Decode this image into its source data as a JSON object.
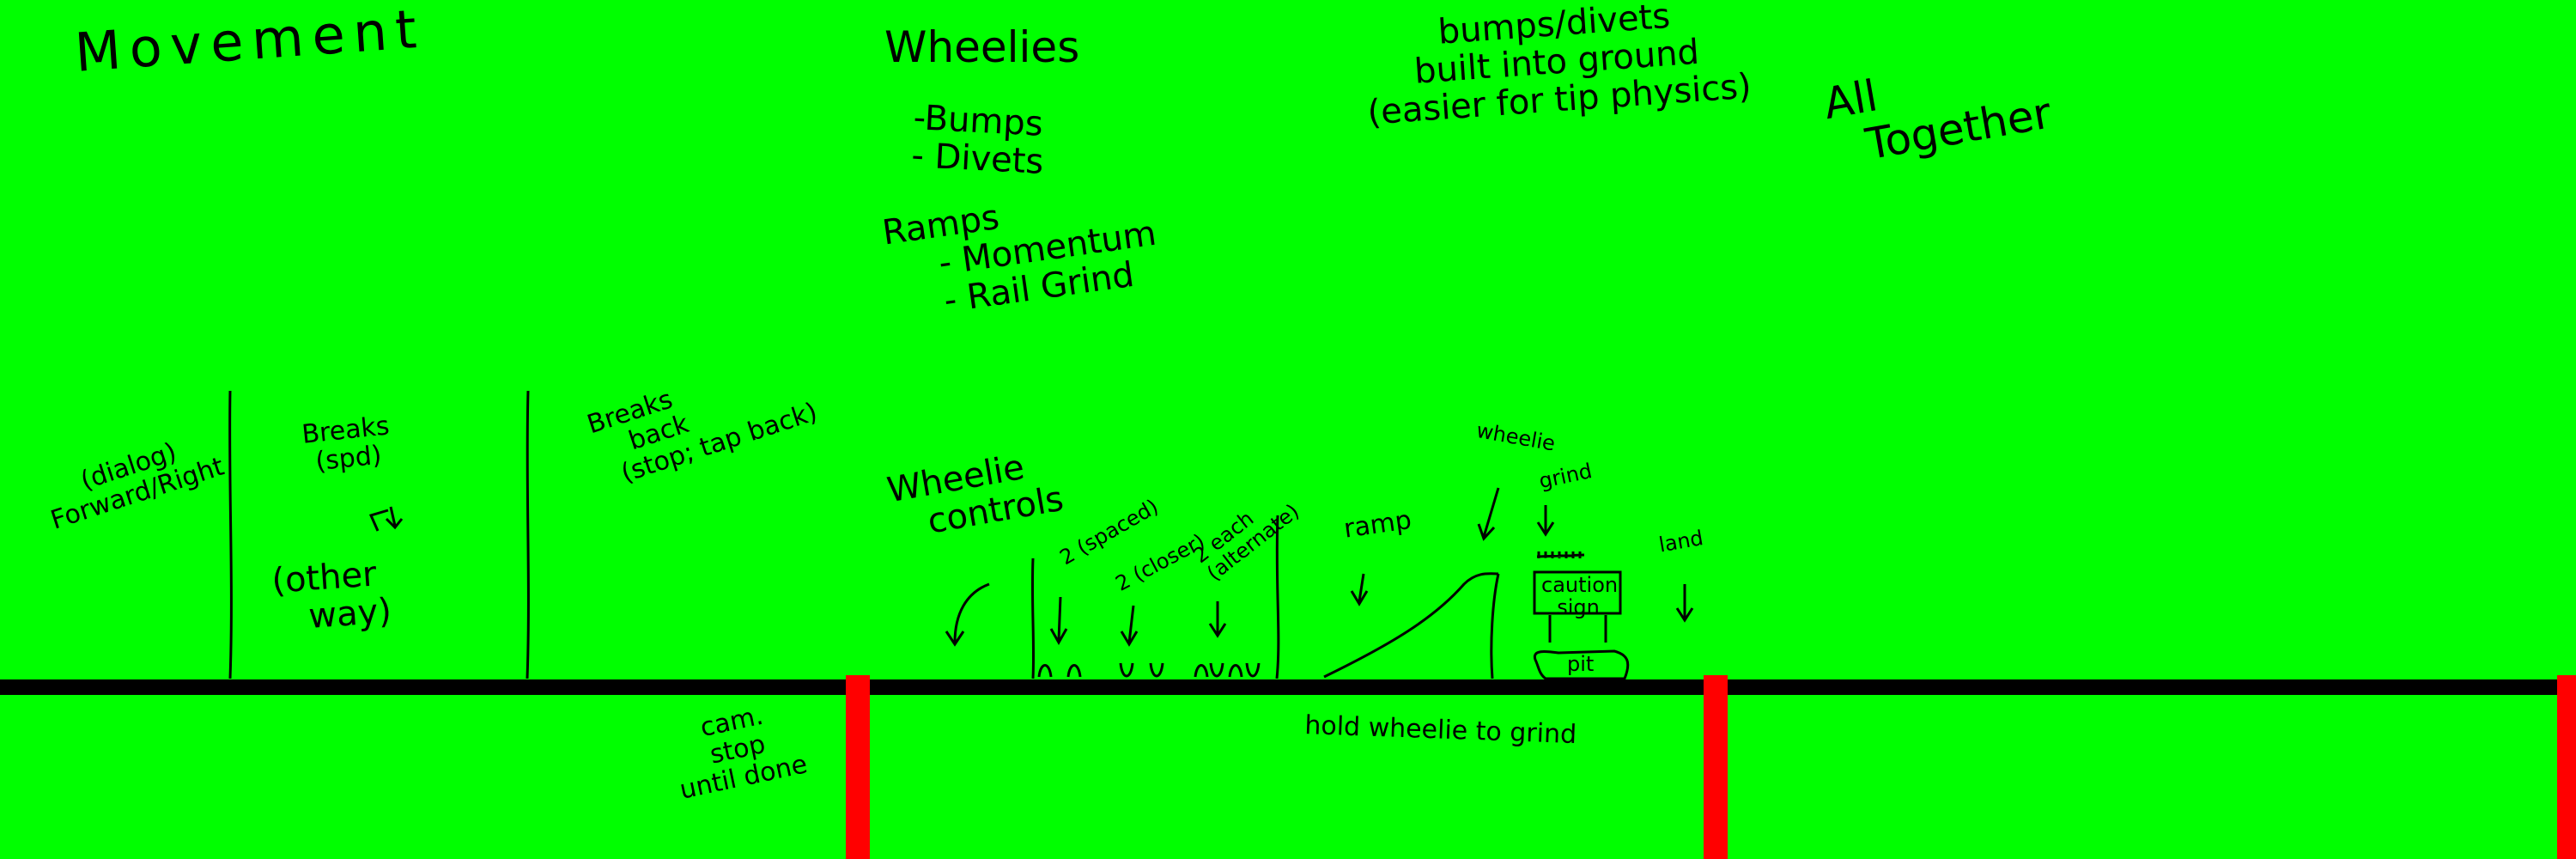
{
  "sections": {
    "movement": "Movement",
    "wheelies": "Wheelies",
    "bumps": [
      "bumps/divets",
      "built into ground",
      "(easier for tip physics)"
    ],
    "all_together": [
      "All",
      "Together"
    ]
  },
  "wheelie_list": [
    "-Bumps",
    "- Divets"
  ],
  "ramps_list": [
    "Ramps",
    "- Momentum",
    "- Rail Grind"
  ],
  "movement_notes": {
    "forward": [
      "(dialog)",
      "Forward/Right"
    ],
    "breaks_spd": [
      "Breaks",
      "(spd)"
    ],
    "other_way": [
      "(other",
      "way)"
    ],
    "breaks_back": [
      "Breaks",
      "back",
      "(stop; tap back)"
    ]
  },
  "wheelie_notes": {
    "controls": [
      "Wheelie",
      "controls"
    ],
    "spaced": "2 (spaced)",
    "closer": "2 (closer)",
    "alternate": [
      "2 each",
      "(alternate)"
    ]
  },
  "course_notes": {
    "ramp": "ramp",
    "wheelie": "wheelie",
    "grind": "grind",
    "caution_sign": [
      "caution",
      "sign"
    ],
    "land": "land",
    "pit": "pit",
    "hold": "hold wheelie to grind",
    "cam": [
      "cam.",
      "stop",
      "until done"
    ]
  },
  "colors": {
    "background": "#00ff00",
    "ground": "#000000",
    "divider": "#ff0000"
  }
}
